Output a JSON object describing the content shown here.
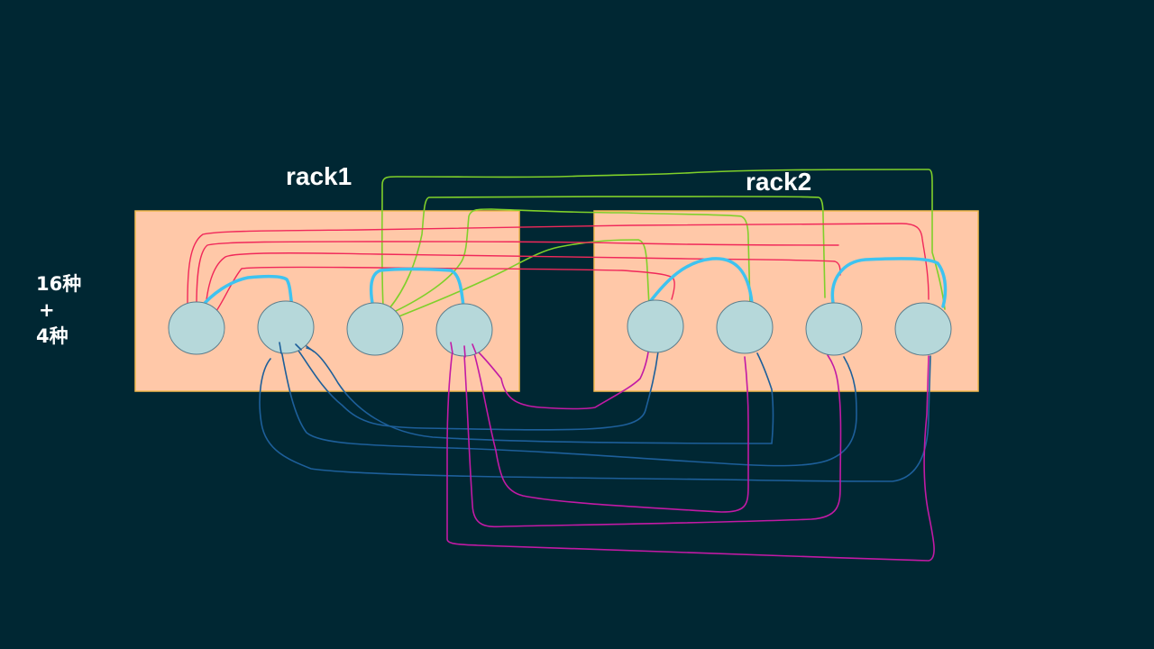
{
  "colors": {
    "background": "#002733",
    "rack_fill": "#ffc8a8",
    "rack_border": "#f2b94e",
    "node_fill": "#b6d8da",
    "node_stroke": "#5a7d8c",
    "link_cyan": "#3ec3f0",
    "link_red": "#f0285a",
    "link_green": "#7fd02a",
    "link_blue": "#1d5f9a",
    "link_magenta": "#c21aa5"
  },
  "racks": [
    {
      "name": "rack1",
      "nodes": 4
    },
    {
      "name": "rack2",
      "nodes": 4
    }
  ],
  "side_note": {
    "line1": "16种",
    "line2": "+",
    "line3": "4种"
  }
}
